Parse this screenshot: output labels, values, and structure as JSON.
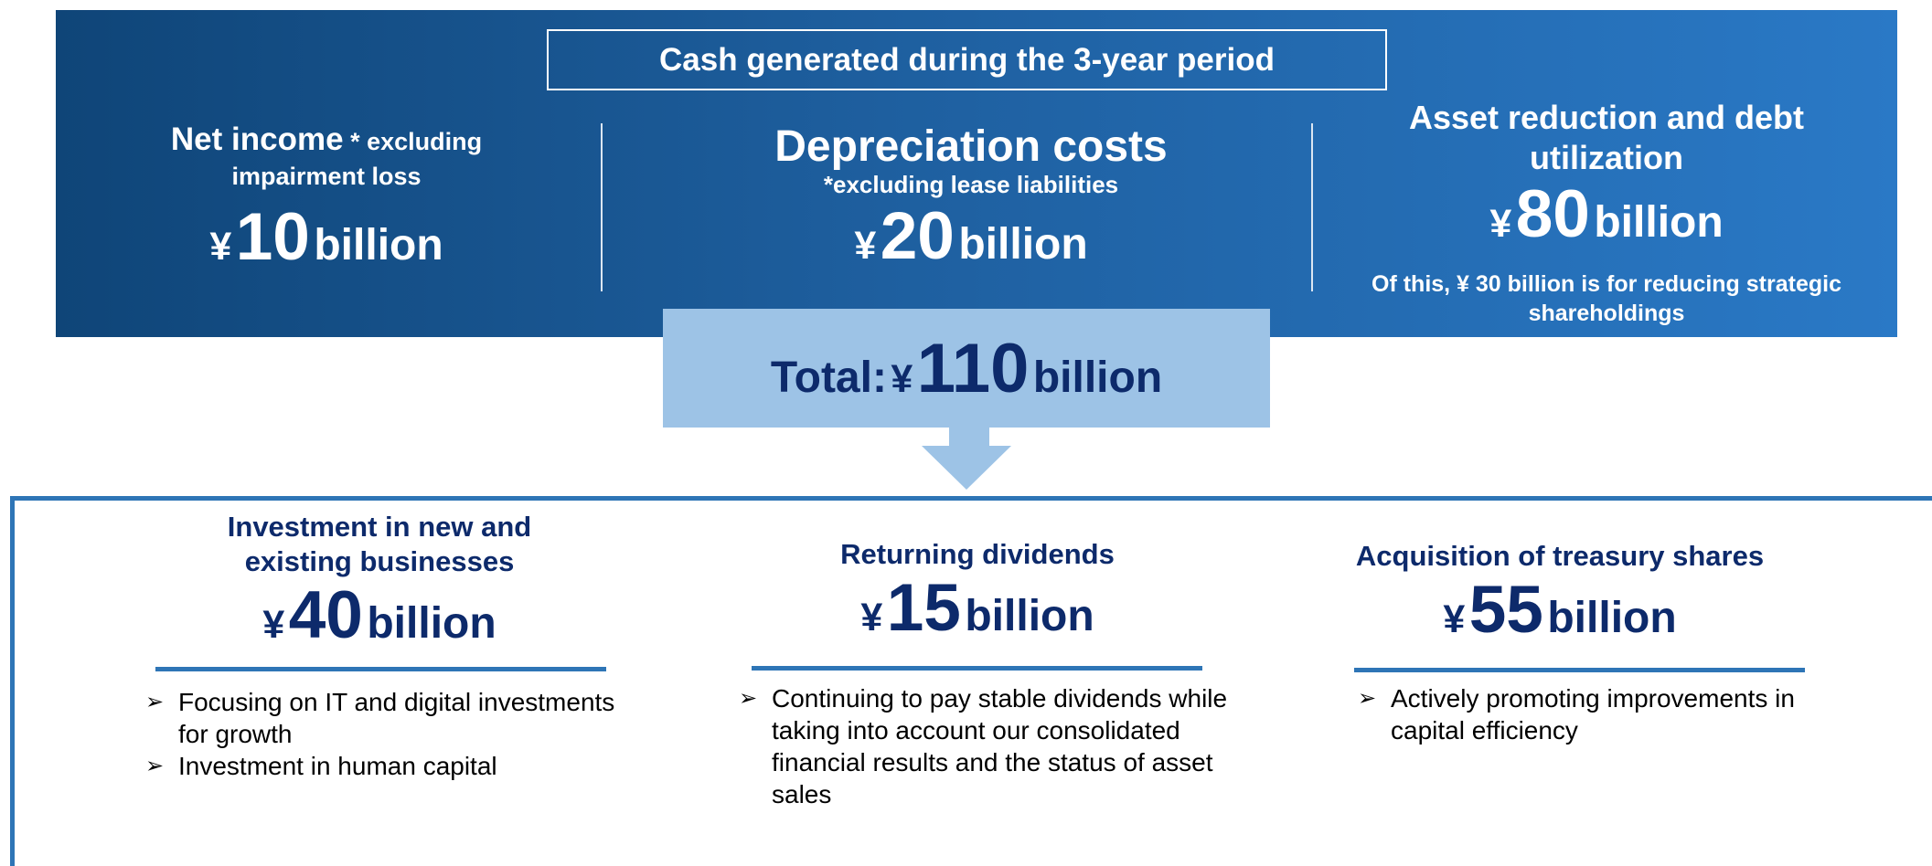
{
  "header": {
    "title": "Cash generated during the 3-year period"
  },
  "sources": [
    {
      "label": "Net income",
      "note": "* excluding impairment loss",
      "currency": "¥",
      "amount": 10,
      "unit": "billion"
    },
    {
      "label": "Depreciation costs",
      "note": "*excluding lease liabilities",
      "currency": "¥",
      "amount": 20,
      "unit": "billion"
    },
    {
      "label": "Asset reduction and debt utilization",
      "currency": "¥",
      "amount": 80,
      "unit": "billion",
      "note": "Of this, ¥ 30 billion is for reducing strategic shareholdings"
    }
  ],
  "total": {
    "label": "Total:",
    "currency": "¥",
    "amount": 110,
    "unit": "billion"
  },
  "uses": [
    {
      "label": "Investment in new and existing businesses",
      "currency": "¥",
      "amount": 40,
      "unit": "billion",
      "bullets": [
        "Focusing on IT and digital investments for growth",
        "Investment in human capital"
      ]
    },
    {
      "label": "Returning dividends",
      "currency": "¥",
      "amount": 15,
      "unit": "billion",
      "bullets": [
        "Continuing to pay stable dividends while taking into account our consolidated financial results and the status of asset sales"
      ]
    },
    {
      "label": "Acquisition of treasury shares",
      "currency": "¥",
      "amount": 55,
      "unit": "billion",
      "bullets": [
        "Actively promoting improvements in capital efficiency"
      ]
    }
  ]
}
